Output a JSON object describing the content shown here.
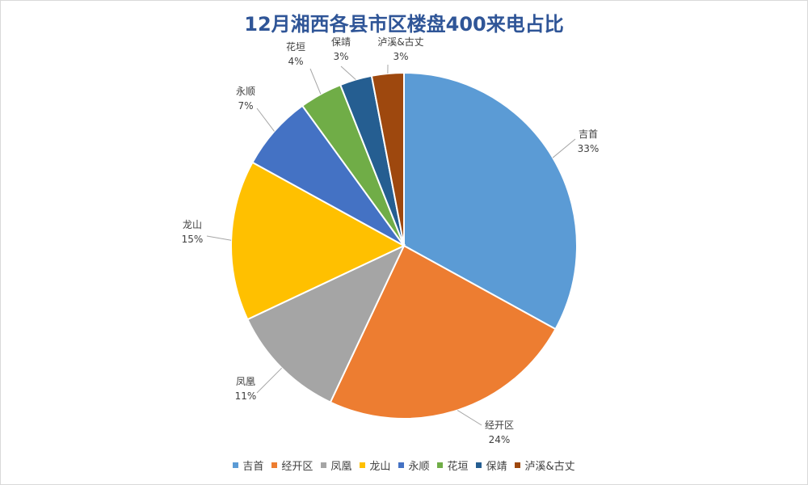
{
  "chart_data": {
    "type": "pie",
    "title": "12月湘西各县市区楼盘400来电占比",
    "legend_position": "bottom",
    "start_angle_deg": 0,
    "direction": "clockwise",
    "slices": [
      {
        "name": "吉首",
        "value": 33,
        "label": "33%",
        "color": "#5b9bd5"
      },
      {
        "name": "经开区",
        "value": 24,
        "label": "24%",
        "color": "#ed7d31"
      },
      {
        "name": "凤凰",
        "value": 11,
        "label": "11%",
        "color": "#a5a5a5"
      },
      {
        "name": "龙山",
        "value": 15,
        "label": "15%",
        "color": "#ffc000"
      },
      {
        "name": "永顺",
        "value": 7,
        "label": "7%",
        "color": "#4472c4"
      },
      {
        "name": "花垣",
        "value": 4,
        "label": "4%",
        "color": "#70ad47"
      },
      {
        "name": "保靖",
        "value": 3,
        "label": "3%",
        "color": "#255e91"
      },
      {
        "name": "泸溪&古丈",
        "value": 3,
        "label": "3%",
        "color": "#9e480e"
      }
    ]
  }
}
